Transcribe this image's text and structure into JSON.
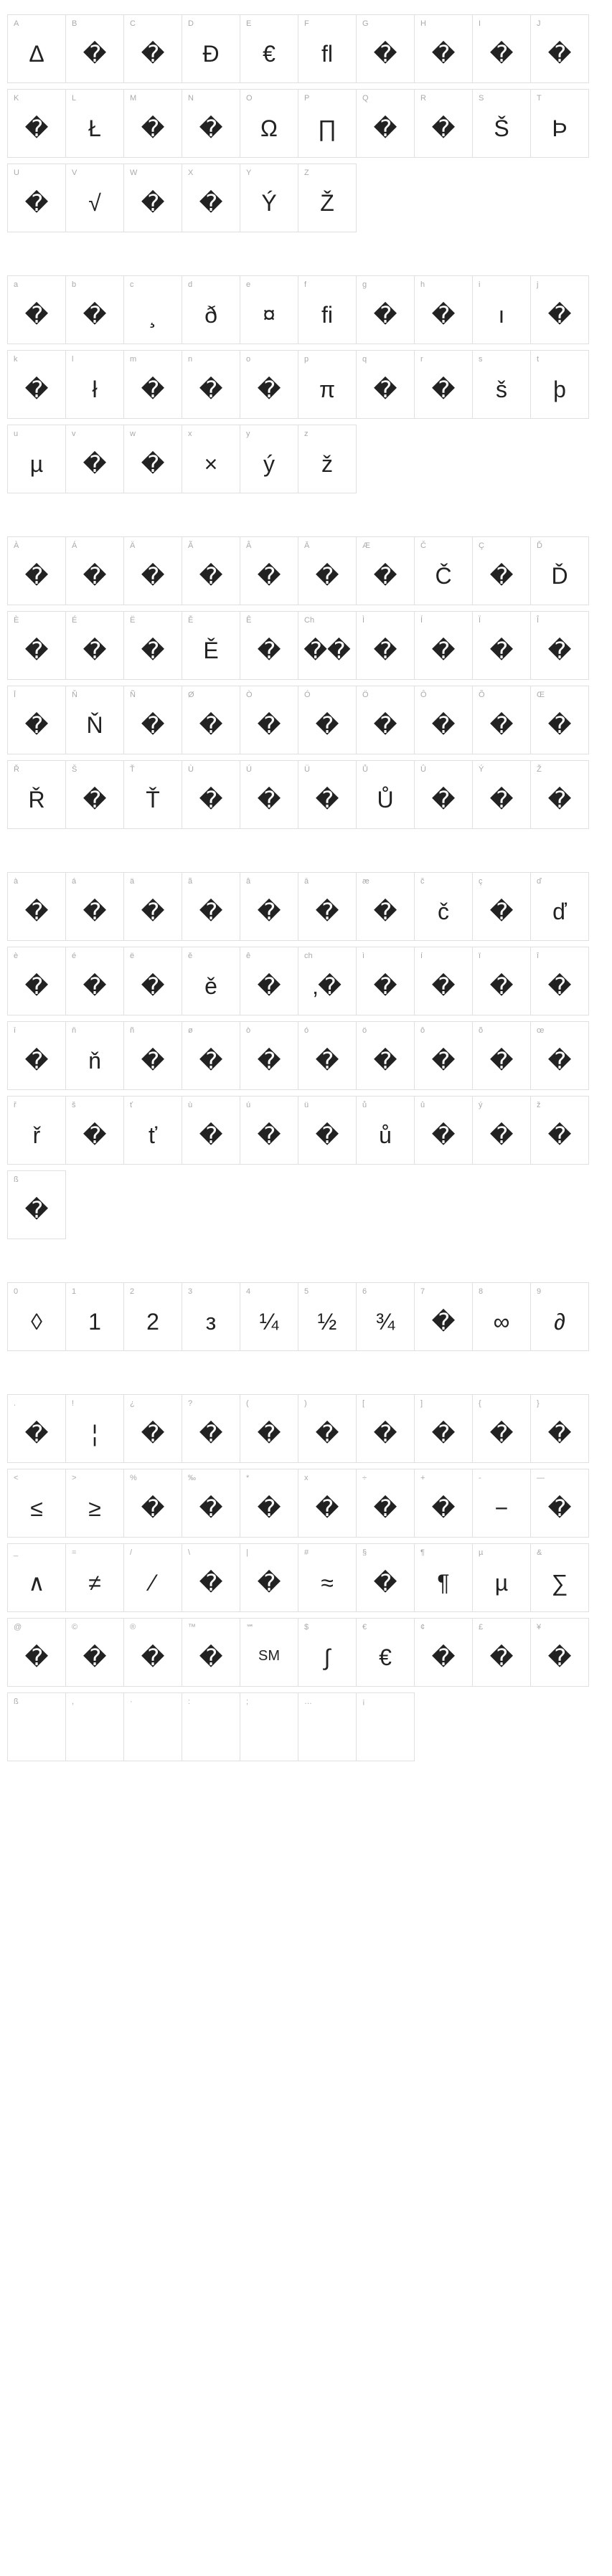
{
  "sections": [
    {
      "rows": [
        [
          {
            "label": "A",
            "glyph": "Δ"
          },
          {
            "label": "B",
            "glyph": "�"
          },
          {
            "label": "C",
            "glyph": "�"
          },
          {
            "label": "D",
            "glyph": "Đ"
          },
          {
            "label": "E",
            "glyph": "€"
          },
          {
            "label": "F",
            "glyph": "ﬂ"
          },
          {
            "label": "G",
            "glyph": "�"
          },
          {
            "label": "H",
            "glyph": "�"
          },
          {
            "label": "I",
            "glyph": "�"
          },
          {
            "label": "J",
            "glyph": "�"
          }
        ],
        [
          {
            "label": "K",
            "glyph": "�"
          },
          {
            "label": "L",
            "glyph": "Ł"
          },
          {
            "label": "M",
            "glyph": "�"
          },
          {
            "label": "N",
            "glyph": "�"
          },
          {
            "label": "O",
            "glyph": "Ω"
          },
          {
            "label": "P",
            "glyph": "∏"
          },
          {
            "label": "Q",
            "glyph": "�"
          },
          {
            "label": "R",
            "glyph": "�"
          },
          {
            "label": "S",
            "glyph": "Š"
          },
          {
            "label": "T",
            "glyph": "Þ"
          }
        ],
        [
          {
            "label": "U",
            "glyph": "�"
          },
          {
            "label": "V",
            "glyph": "√"
          },
          {
            "label": "W",
            "glyph": "�"
          },
          {
            "label": "X",
            "glyph": "�"
          },
          {
            "label": "Y",
            "glyph": "Ý"
          },
          {
            "label": "Z",
            "glyph": "Ž"
          }
        ]
      ]
    },
    {
      "rows": [
        [
          {
            "label": "a",
            "glyph": "�"
          },
          {
            "label": "b",
            "glyph": "�"
          },
          {
            "label": "c",
            "glyph": "¸"
          },
          {
            "label": "d",
            "glyph": "ð"
          },
          {
            "label": "e",
            "glyph": "¤"
          },
          {
            "label": "f",
            "glyph": "ﬁ"
          },
          {
            "label": "g",
            "glyph": "�"
          },
          {
            "label": "h",
            "glyph": "�"
          },
          {
            "label": "i",
            "glyph": "ı"
          },
          {
            "label": "j",
            "glyph": "�"
          }
        ],
        [
          {
            "label": "k",
            "glyph": "�"
          },
          {
            "label": "l",
            "glyph": "ł"
          },
          {
            "label": "m",
            "glyph": "�"
          },
          {
            "label": "n",
            "glyph": "�"
          },
          {
            "label": "o",
            "glyph": "�"
          },
          {
            "label": "p",
            "glyph": "π"
          },
          {
            "label": "q",
            "glyph": "�"
          },
          {
            "label": "r",
            "glyph": "�"
          },
          {
            "label": "s",
            "glyph": "š"
          },
          {
            "label": "t",
            "glyph": "þ"
          }
        ],
        [
          {
            "label": "u",
            "glyph": "µ"
          },
          {
            "label": "v",
            "glyph": "�"
          },
          {
            "label": "w",
            "glyph": "�"
          },
          {
            "label": "x",
            "glyph": "×"
          },
          {
            "label": "y",
            "glyph": "ý"
          },
          {
            "label": "z",
            "glyph": "ž"
          }
        ]
      ]
    },
    {
      "rows": [
        [
          {
            "label": "À",
            "glyph": "�"
          },
          {
            "label": "Á",
            "glyph": "�"
          },
          {
            "label": "Ä",
            "glyph": "�"
          },
          {
            "label": "Ã",
            "glyph": "�"
          },
          {
            "label": "Â",
            "glyph": "�"
          },
          {
            "label": "Ā",
            "glyph": "�"
          },
          {
            "label": "Æ",
            "glyph": "�"
          },
          {
            "label": "Č",
            "glyph": "Č"
          },
          {
            "label": "Ç",
            "glyph": "�"
          },
          {
            "label": "Ď",
            "glyph": "Ď"
          }
        ],
        [
          {
            "label": "È",
            "glyph": "�"
          },
          {
            "label": "É",
            "glyph": "�"
          },
          {
            "label": "Ë",
            "glyph": "�"
          },
          {
            "label": "Ě",
            "glyph": "Ě"
          },
          {
            "label": "Ê",
            "glyph": "�"
          },
          {
            "label": "Ch",
            "glyph": "��"
          },
          {
            "label": "Ì",
            "glyph": "�"
          },
          {
            "label": "Í",
            "glyph": "�"
          },
          {
            "label": "Ï",
            "glyph": "�"
          },
          {
            "label": "Î",
            "glyph": "�"
          }
        ],
        [
          {
            "label": "Ī",
            "glyph": "�"
          },
          {
            "label": "Ň",
            "glyph": "Ň"
          },
          {
            "label": "Ñ",
            "glyph": "�"
          },
          {
            "label": "Ø",
            "glyph": "�"
          },
          {
            "label": "Ò",
            "glyph": "�"
          },
          {
            "label": "Ó",
            "glyph": "�"
          },
          {
            "label": "Ö",
            "glyph": "�"
          },
          {
            "label": "Ô",
            "glyph": "�"
          },
          {
            "label": "Õ",
            "glyph": "�"
          },
          {
            "label": "Œ",
            "glyph": "�"
          }
        ],
        [
          {
            "label": "Ř",
            "glyph": "Ř"
          },
          {
            "label": "Š",
            "glyph": "�"
          },
          {
            "label": "Ť",
            "glyph": "Ť"
          },
          {
            "label": "Ù",
            "glyph": "�"
          },
          {
            "label": "Ú",
            "glyph": "�"
          },
          {
            "label": "Ü",
            "glyph": "�"
          },
          {
            "label": "Ů",
            "glyph": "Ů"
          },
          {
            "label": "Û",
            "glyph": "�"
          },
          {
            "label": "Ý",
            "glyph": "�"
          },
          {
            "label": "Ž",
            "glyph": "�"
          }
        ]
      ]
    },
    {
      "rows": [
        [
          {
            "label": "à",
            "glyph": "�"
          },
          {
            "label": "á",
            "glyph": "�"
          },
          {
            "label": "ä",
            "glyph": "�"
          },
          {
            "label": "ã",
            "glyph": "�"
          },
          {
            "label": "â",
            "glyph": "�"
          },
          {
            "label": "ā",
            "glyph": "�"
          },
          {
            "label": "æ",
            "glyph": "�"
          },
          {
            "label": "č",
            "glyph": "č"
          },
          {
            "label": "ç",
            "glyph": "�"
          },
          {
            "label": "ď",
            "glyph": "ď"
          }
        ],
        [
          {
            "label": "è",
            "glyph": "�"
          },
          {
            "label": "é",
            "glyph": "�"
          },
          {
            "label": "ë",
            "glyph": "�"
          },
          {
            "label": "ě",
            "glyph": "ě"
          },
          {
            "label": "ê",
            "glyph": "�"
          },
          {
            "label": "ch",
            "glyph": "‚�"
          },
          {
            "label": "ì",
            "glyph": "�"
          },
          {
            "label": "í",
            "glyph": "�"
          },
          {
            "label": "ï",
            "glyph": "�"
          },
          {
            "label": "î",
            "glyph": "�"
          }
        ],
        [
          {
            "label": "ī",
            "glyph": "�"
          },
          {
            "label": "ň",
            "glyph": "ň"
          },
          {
            "label": "ñ",
            "glyph": "�"
          },
          {
            "label": "ø",
            "glyph": "�"
          },
          {
            "label": "ò",
            "glyph": "�"
          },
          {
            "label": "ó",
            "glyph": "�"
          },
          {
            "label": "ö",
            "glyph": "�"
          },
          {
            "label": "ô",
            "glyph": "�"
          },
          {
            "label": "õ",
            "glyph": "�"
          },
          {
            "label": "œ",
            "glyph": "�"
          }
        ],
        [
          {
            "label": "ř",
            "glyph": "ř"
          },
          {
            "label": "š",
            "glyph": "�"
          },
          {
            "label": "ť",
            "glyph": "ť"
          },
          {
            "label": "ù",
            "glyph": "�"
          },
          {
            "label": "ú",
            "glyph": "�"
          },
          {
            "label": "ü",
            "glyph": "�"
          },
          {
            "label": "ů",
            "glyph": "ů"
          },
          {
            "label": "û",
            "glyph": "�"
          },
          {
            "label": "ý",
            "glyph": "�"
          },
          {
            "label": "ž",
            "glyph": "�"
          }
        ],
        [
          {
            "label": "ß",
            "glyph": "�"
          }
        ]
      ]
    },
    {
      "rows": [
        [
          {
            "label": "0",
            "glyph": "◊"
          },
          {
            "label": "1",
            "glyph": "1"
          },
          {
            "label": "2",
            "glyph": "2"
          },
          {
            "label": "3",
            "glyph": "з"
          },
          {
            "label": "4",
            "glyph": "¼"
          },
          {
            "label": "5",
            "glyph": "½"
          },
          {
            "label": "6",
            "glyph": "¾"
          },
          {
            "label": "7",
            "glyph": "�"
          },
          {
            "label": "8",
            "glyph": "∞"
          },
          {
            "label": "9",
            "glyph": "∂"
          }
        ]
      ]
    },
    {
      "rows": [
        [
          {
            "label": ".",
            "glyph": "�"
          },
          {
            "label": "!",
            "glyph": "¦"
          },
          {
            "label": "¿",
            "glyph": "�"
          },
          {
            "label": "?",
            "glyph": "�"
          },
          {
            "label": "(",
            "glyph": "�"
          },
          {
            "label": ")",
            "glyph": "�"
          },
          {
            "label": "[",
            "glyph": "�"
          },
          {
            "label": "]",
            "glyph": "�"
          },
          {
            "label": "{",
            "glyph": "�"
          },
          {
            "label": "}",
            "glyph": "�"
          }
        ],
        [
          {
            "label": "<",
            "glyph": "≤"
          },
          {
            "label": ">",
            "glyph": "≥"
          },
          {
            "label": "%",
            "glyph": "�"
          },
          {
            "label": "‰",
            "glyph": "�"
          },
          {
            "label": "*",
            "glyph": "�"
          },
          {
            "label": "x",
            "glyph": "�"
          },
          {
            "label": "÷",
            "glyph": "�"
          },
          {
            "label": "+",
            "glyph": "�"
          },
          {
            "label": "-",
            "glyph": "−"
          },
          {
            "label": "—",
            "glyph": "�"
          }
        ],
        [
          {
            "label": "_",
            "glyph": "∧"
          },
          {
            "label": "=",
            "glyph": "≠"
          },
          {
            "label": "/",
            "glyph": "⁄"
          },
          {
            "label": "\\",
            "glyph": "�"
          },
          {
            "label": "|",
            "glyph": "�"
          },
          {
            "label": "#",
            "glyph": "≈"
          },
          {
            "label": "§",
            "glyph": "�"
          },
          {
            "label": "¶",
            "glyph": "¶"
          },
          {
            "label": "µ",
            "glyph": "µ"
          },
          {
            "label": "&",
            "glyph": "∑"
          }
        ],
        [
          {
            "label": "@",
            "glyph": "�"
          },
          {
            "label": "©",
            "glyph": "�"
          },
          {
            "label": "®",
            "glyph": "�"
          },
          {
            "label": "™",
            "glyph": "�"
          },
          {
            "label": "℠",
            "glyph": "SM",
            "cls": "tiny"
          },
          {
            "label": "$",
            "glyph": "∫"
          },
          {
            "label": "€",
            "glyph": "€"
          },
          {
            "label": "¢",
            "glyph": "�"
          },
          {
            "label": "£",
            "glyph": "�"
          },
          {
            "label": "¥",
            "glyph": "�"
          }
        ],
        [
          {
            "label": "ß",
            "glyph": ""
          },
          {
            "label": ",",
            "glyph": ""
          },
          {
            "label": "·",
            "glyph": ""
          },
          {
            "label": ":",
            "glyph": ""
          },
          {
            "label": ";",
            "glyph": ""
          },
          {
            "label": "…",
            "glyph": ""
          },
          {
            "label": "¡",
            "glyph": ""
          }
        ]
      ]
    }
  ]
}
